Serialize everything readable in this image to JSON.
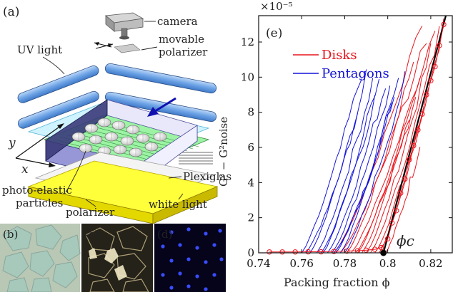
{
  "panel_a": {
    "label": "(a)",
    "labels": {
      "camera": "camera",
      "polarizer_top_1": "movable",
      "polarizer_top_2": "polarizer",
      "uv": "UV light",
      "particles_1": "photo-elastic",
      "particles_2": "particles",
      "polarizer": "polarizer",
      "white": "white light",
      "plexi": "Plexiglas",
      "axis_x": "x",
      "axis_y": "y",
      "vertical": "G² − G²noise"
    }
  },
  "panels_small": [
    {
      "label": "(b)",
      "bg": "#b9c7b5"
    },
    {
      "label": "(c)",
      "bg": "#252219"
    },
    {
      "label": "(d)",
      "bg": "#05041a"
    }
  ],
  "chart_data": {
    "type": "line",
    "panel_label": "(e)",
    "xlabel": "Packing fraction ϕ",
    "exponent_label": "×10⁻⁵",
    "annotation": "ϕc",
    "xlim": [
      0.74,
      0.83
    ],
    "ylim": [
      0,
      13.5
    ],
    "xticks": [
      "0.74",
      "0.76",
      "0.78",
      "0.8",
      "0.82"
    ],
    "xtick_values": [
      0.74,
      0.76,
      0.78,
      0.8,
      0.82
    ],
    "yticks": [
      "0",
      "2",
      "4",
      "6",
      "8",
      "10",
      "12"
    ],
    "ytick_values": [
      0,
      2,
      4,
      6,
      8,
      10,
      12
    ],
    "legend": [
      {
        "name": "Disks",
        "color": "#e8141b"
      },
      {
        "name": "Pentagons",
        "color": "#1414d8"
      }
    ],
    "fit_line": {
      "x": [
        0.798,
        0.827
      ],
      "y": [
        0,
        13.5
      ]
    },
    "phi_c": 0.798,
    "series_red": [
      {
        "x0": 0.775,
        "x1": 0.816,
        "ymax": 13.3
      },
      {
        "x0": 0.778,
        "x1": 0.818,
        "ymax": 12.2
      },
      {
        "x0": 0.781,
        "x1": 0.812,
        "ymax": 11.0
      },
      {
        "x0": 0.783,
        "x1": 0.822,
        "ymax": 13.0
      },
      {
        "x0": 0.786,
        "x1": 0.815,
        "ymax": 10.2
      },
      {
        "x0": 0.788,
        "x1": 0.813,
        "ymax": 9.0
      },
      {
        "x0": 0.79,
        "x1": 0.82,
        "ymax": 11.6
      },
      {
        "x0": 0.792,
        "x1": 0.824,
        "ymax": 12.6
      },
      {
        "x0": 0.794,
        "x1": 0.817,
        "ymax": 8.6
      },
      {
        "x0": 0.796,
        "x1": 0.826,
        "ymax": 13.1
      },
      {
        "x0": 0.799,
        "x1": 0.815,
        "ymax": 6.2
      },
      {
        "x0": 0.785,
        "x1": 0.81,
        "ymax": 7.4
      }
    ],
    "series_blue": [
      {
        "x0": 0.76,
        "x1": 0.788,
        "ymax": 10.3
      },
      {
        "x0": 0.764,
        "x1": 0.79,
        "ymax": 10.0
      },
      {
        "x0": 0.767,
        "x1": 0.793,
        "ymax": 9.8
      },
      {
        "x0": 0.77,
        "x1": 0.796,
        "ymax": 10.2
      },
      {
        "x0": 0.772,
        "x1": 0.799,
        "ymax": 9.6
      },
      {
        "x0": 0.774,
        "x1": 0.801,
        "ymax": 9.4
      },
      {
        "x0": 0.776,
        "x1": 0.803,
        "ymax": 9.0
      },
      {
        "x0": 0.778,
        "x1": 0.805,
        "ymax": 10.1
      },
      {
        "x0": 0.769,
        "x1": 0.794,
        "ymax": 8.6
      },
      {
        "x0": 0.78,
        "x1": 0.808,
        "ymax": 9.9
      },
      {
        "x0": 0.762,
        "x1": 0.786,
        "ymax": 7.8
      },
      {
        "x0": 0.775,
        "x1": 0.802,
        "ymax": 8.2
      }
    ],
    "markers": {
      "x": [
        0.745,
        0.751,
        0.757,
        0.763,
        0.769,
        0.775,
        0.781,
        0.786,
        0.79,
        0.794,
        0.797,
        0.8,
        0.802,
        0.804,
        0.806,
        0.808,
        0.81,
        0.812,
        0.814,
        0.816,
        0.818,
        0.82,
        0.822,
        0.824,
        0.826
      ],
      "y": [
        0.05,
        0.05,
        0.05,
        0.06,
        0.06,
        0.08,
        0.1,
        0.12,
        0.15,
        0.2,
        0.3,
        0.8,
        1.7,
        2.4,
        3.4,
        4.2,
        5.3,
        6.1,
        7.0,
        7.9,
        9.0,
        9.8,
        10.6,
        11.8,
        13.0
      ]
    }
  }
}
